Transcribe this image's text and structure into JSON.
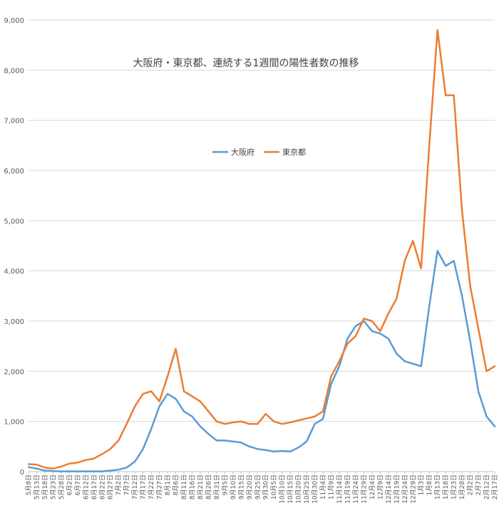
{
  "chart_data": {
    "type": "line",
    "title": "大阪府・東京都、連続する1週間の陽性者数の推移",
    "xlabel": "",
    "ylabel": "",
    "ylim": [
      0,
      9000
    ],
    "yticks": [
      "0",
      "1,000",
      "2,000",
      "3,000",
      "4,000",
      "5,000",
      "6,000",
      "7,000",
      "8,000",
      "9,000"
    ],
    "grid": true,
    "legend_position": "center",
    "x": [
      "5月8日",
      "5月13日",
      "5月18日",
      "5月23日",
      "5月28日",
      "6月2日",
      "6月7日",
      "6月12日",
      "6月17日",
      "6月22日",
      "6月27日",
      "7月2日",
      "7月7日",
      "7月12日",
      "7月17日",
      "7月22日",
      "7月27日",
      "8月1日",
      "8月6日",
      "8月11日",
      "8月16日",
      "8月21日",
      "8月26日",
      "8月31日",
      "9月5日",
      "9月10日",
      "9月15日",
      "9月20日",
      "9月25日",
      "9月30日",
      "10月5日",
      "10月10日",
      "10月15日",
      "10月20日",
      "10月25日",
      "10月30日",
      "11月4日",
      "11月9日",
      "11月14日",
      "11月19日",
      "11月24日",
      "11月29日",
      "12月4日",
      "12月9日",
      "12月14日",
      "12月19日",
      "12月24日",
      "12月29日",
      "1月3日",
      "1月8日",
      "1月13日",
      "1月18日",
      "1月23日",
      "1月28日",
      "2月2日",
      "2月7日",
      "2月12日",
      "2月17日"
    ],
    "x_tick_labels": [
      "5月8日",
      "5月13日",
      "5月18日",
      "5月23日",
      "5月28日",
      "6月2日",
      "6月7日",
      "6月12日",
      "6月17日",
      "6月22日",
      "6月27日",
      "7月2日",
      "7月7日",
      "7月12日",
      "7月17日",
      "7月22日",
      "7月27日",
      "8月1日",
      "8月6日",
      "8月11日",
      "8月16日",
      "8月21日",
      "8月26日",
      "8月31日",
      "9月5日",
      "9月10日",
      "9月15日",
      "9月20日",
      "9月25日",
      "9月30日",
      "10月5日",
      "10月10日",
      "10月15日",
      "10月20日",
      "10月25日",
      "10月30日",
      "11月4日",
      "11月9日",
      "11月14日",
      "11月19日",
      "11月24日",
      "11月29日",
      "12月4日",
      "12月9日",
      "12月14日",
      "12月19日",
      "12月24日",
      "12月29日",
      "1月3日",
      "1月8日",
      "1月13日",
      "1月18日",
      "1月23日",
      "1月28日",
      "2月2日",
      "2月7日",
      "2月12日",
      "2月17日"
    ],
    "series": [
      {
        "name": "大阪府",
        "color": "#5B9BD5",
        "values": [
          90,
          60,
          20,
          10,
          5,
          5,
          5,
          5,
          5,
          5,
          20,
          40,
          80,
          200,
          450,
          850,
          1300,
          1550,
          1450,
          1200,
          1100,
          900,
          750,
          620,
          620,
          600,
          580,
          500,
          450,
          430,
          400,
          410,
          400,
          480,
          600,
          950,
          1050,
          1750,
          2100,
          2650,
          2900,
          3000,
          2800,
          2750,
          2650,
          2350,
          2200,
          2150,
          2100,
          3300,
          4400,
          4100,
          4200,
          3500,
          2600,
          1600,
          1100,
          900
        ]
      },
      {
        "name": "東京都",
        "color": "#ED7D31",
        "values": [
          150,
          140,
          80,
          60,
          100,
          160,
          180,
          230,
          260,
          350,
          450,
          620,
          950,
          1300,
          1550,
          1600,
          1400,
          1900,
          2450,
          1600,
          1500,
          1400,
          1200,
          1000,
          950,
          980,
          1000,
          950,
          950,
          1150,
          1000,
          950,
          980,
          1020,
          1060,
          1100,
          1200,
          1900,
          2200,
          2550,
          2700,
          3050,
          3000,
          2800,
          3150,
          3450,
          4200,
          4600,
          4050,
          6500,
          8800,
          7500,
          7500,
          5200,
          3700,
          2850,
          2000,
          2100
        ]
      }
    ]
  }
}
